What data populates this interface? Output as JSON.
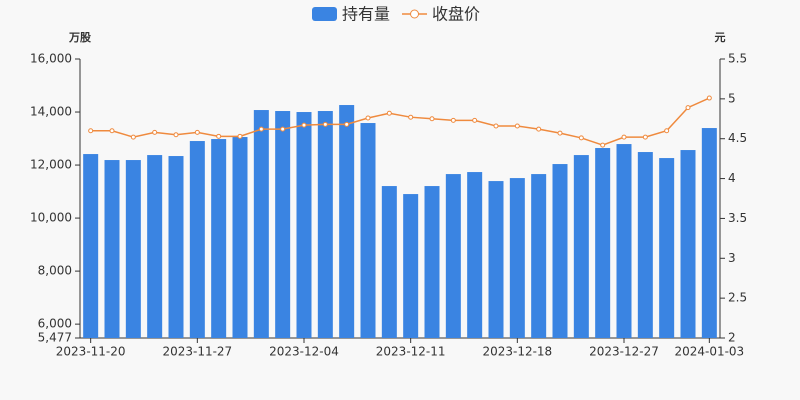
{
  "chart_data": {
    "type": "bar_line",
    "categories": [
      "2023-11-20",
      null,
      null,
      null,
      null,
      "2023-11-27",
      null,
      null,
      null,
      null,
      "2023-12-04",
      null,
      null,
      null,
      null,
      "2023-12-11",
      null,
      null,
      null,
      null,
      "2023-12-18",
      null,
      null,
      null,
      null,
      "2023-12-27",
      null,
      null,
      null,
      "2024-01-03"
    ],
    "series": [
      {
        "name": "持有量",
        "type": "bar",
        "color": "#3a84e2",
        "values": [
          12415,
          12189,
          12189,
          12377,
          12340,
          12906,
          12981,
          13057,
          14075,
          14038,
          14000,
          14038,
          14264,
          13585,
          11208,
          10906,
          11208,
          11660,
          11736,
          11396,
          11509,
          11660,
          12038,
          12377,
          12642,
          12792,
          12491,
          12264,
          12566,
          13396
        ]
      },
      {
        "name": "收盘价",
        "type": "line",
        "axis": "y2",
        "color": "#ef8a3e",
        "values": [
          4.6,
          4.6,
          4.52,
          4.58,
          4.55,
          4.58,
          4.53,
          4.53,
          4.62,
          4.62,
          4.67,
          4.68,
          4.68,
          4.76,
          4.82,
          4.77,
          4.75,
          4.73,
          4.73,
          4.66,
          4.66,
          4.62,
          4.57,
          4.51,
          4.42,
          4.52,
          4.52,
          4.6,
          4.89,
          5.01
        ]
      }
    ],
    "y_label": "万股",
    "y2_label": "元",
    "ylim": [
      5477,
      16000
    ],
    "yticks": [
      {
        "value": 5477,
        "label": "5,477"
      },
      {
        "value": 6000,
        "label": "6,000"
      },
      {
        "value": 8000,
        "label": "8,000"
      },
      {
        "value": 10000,
        "label": "10,000"
      },
      {
        "value": 12000,
        "label": "12,000"
      },
      {
        "value": 14000,
        "label": "14,000"
      },
      {
        "value": 16000,
        "label": "16,000"
      }
    ],
    "y2lim": [
      2,
      5.5
    ],
    "y2ticks": [
      2,
      2.5,
      3,
      3.5,
      4,
      4.5,
      5,
      5.5
    ],
    "grid": false,
    "legend": "top"
  }
}
